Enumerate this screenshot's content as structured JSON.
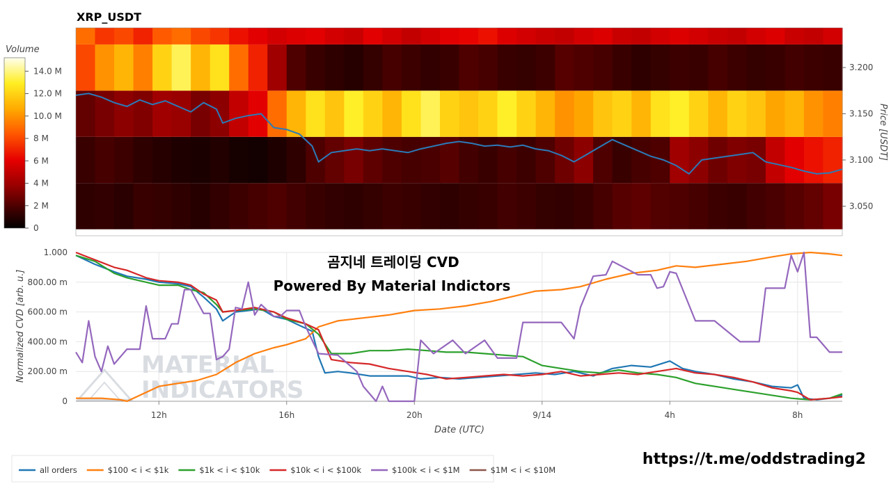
{
  "heatmap_title": "XRP_USDT",
  "colorbar": {
    "title": "Volume",
    "ticks": [
      "0",
      "2 M",
      "4 M",
      "6 M",
      "8 M",
      "10.0 M",
      "12.0 M",
      "14.0 M"
    ],
    "tick_values": [
      0,
      2,
      4,
      6,
      8,
      10,
      12,
      14
    ],
    "max": 15.2
  },
  "overlay": {
    "line1": "곰지네 트레이딩 CVD",
    "line2": "Powered By Material Indictors"
  },
  "watermark": {
    "line1": "MATERIAL",
    "line2": "INDICATORS"
  },
  "telegram_link": "https://t.me/oddstrading2",
  "colors": {
    "all_orders": "#1f77b4",
    "t100_1k": "#ff7f0e",
    "t1k_10k": "#2ca02c",
    "t10k_100k": "#d62728",
    "t100k_1m": "#9467bd",
    "t1m_10m": "#8c564b",
    "price_line": "#2b7bb9"
  },
  "chart_data": [
    {
      "type": "heatmap",
      "title": "XRP_USDT",
      "ylabel": "Price [USDT]",
      "y_ticks": [
        "3.050",
        "3.100",
        "3.150",
        "3.200"
      ],
      "y_tick_values": [
        3.05,
        3.1,
        3.15,
        3.2
      ],
      "ylim": [
        3.018,
        3.243
      ],
      "time_range_hours": [
        9.4,
        33.4
      ],
      "price_bands": [
        {
          "band": [
            3.025,
            3.075
          ],
          "volume": [
            1.2,
            1.3,
            1.1,
            1.5,
            1.4,
            1.2,
            1.0,
            1.3,
            1.6,
            1.8,
            2.0,
            1.7,
            1.5,
            1.3,
            1.2,
            1.4,
            1.6,
            1.5,
            1.3,
            1.2,
            1.4,
            1.5,
            1.7,
            1.6,
            1.4,
            1.3,
            1.5,
            1.8,
            2.2,
            2.4,
            2.1,
            2.0,
            1.8,
            1.6,
            1.5,
            1.7,
            1.9,
            2.2,
            2.5,
            3.0
          ]
        },
        {
          "band": [
            3.075,
            3.125
          ],
          "volume": [
            1.5,
            1.8,
            1.6,
            1.2,
            1.0,
            0.8,
            0.7,
            0.9,
            0.6,
            0.5,
            0.8,
            1.2,
            2.0,
            2.5,
            3.0,
            2.4,
            2.0,
            1.8,
            1.9,
            2.2,
            1.7,
            1.5,
            1.8,
            1.6,
            2.0,
            2.8,
            3.5,
            2.0,
            1.5,
            1.8,
            2.0,
            4.0,
            3.5,
            2.8,
            3.2,
            3.0,
            5.0,
            6.0,
            6.5,
            7.0
          ]
        },
        {
          "band": [
            3.125,
            3.175
          ],
          "volume": [
            2.5,
            3.0,
            3.5,
            3.2,
            4.0,
            3.8,
            3.0,
            3.5,
            5.0,
            6.0,
            9.0,
            11.0,
            12.5,
            11.5,
            13.0,
            12.0,
            11.0,
            12.5,
            13.5,
            12.0,
            11.5,
            12.0,
            13.0,
            12.0,
            11.0,
            10.0,
            10.5,
            11.5,
            12.0,
            11.0,
            12.5,
            13.0,
            12.0,
            11.0,
            12.0,
            11.5,
            10.5,
            11.0,
            10.0,
            9.5
          ]
        },
        {
          "band": [
            3.175,
            3.225
          ],
          "volume": [
            8.0,
            10.0,
            11.0,
            9.5,
            12.0,
            13.5,
            11.0,
            12.5,
            9.0,
            7.0,
            4.0,
            2.0,
            1.5,
            1.2,
            1.0,
            1.4,
            1.8,
            1.6,
            1.3,
            1.5,
            2.0,
            1.8,
            1.5,
            1.4,
            1.6,
            2.2,
            2.0,
            1.8,
            1.5,
            1.2,
            1.4,
            1.6,
            1.5,
            1.8,
            1.6,
            1.4,
            1.5,
            1.7,
            1.6,
            1.5
          ]
        },
        {
          "band": [
            3.225,
            3.275
          ],
          "volume": [
            9.0,
            7.5,
            8.0,
            7.0,
            8.5,
            9.0,
            8.0,
            7.5,
            6.5,
            6.0,
            5.5,
            5.8,
            6.0,
            5.5,
            5.2,
            6.0,
            5.5,
            5.0,
            5.5,
            6.0,
            6.2,
            6.5,
            5.8,
            5.5,
            5.2,
            5.0,
            5.5,
            5.8,
            5.2,
            5.0,
            5.5,
            5.8,
            5.5,
            5.2,
            5.0,
            5.5,
            5.8,
            5.2,
            5.0,
            5.5
          ]
        }
      ],
      "series": [
        {
          "name": "",
          "x": [
            9.4,
            9.8,
            10.2,
            10.6,
            11.0,
            11.4,
            11.8,
            12.2,
            12.6,
            13.0,
            13.4,
            13.8,
            14.0,
            14.4,
            14.8,
            15.2,
            15.6,
            16.0,
            16.4,
            16.8,
            17.0,
            17.4,
            17.8,
            18.2,
            18.6,
            19.0,
            19.4,
            19.8,
            20.2,
            20.6,
            21.0,
            21.4,
            21.8,
            22.2,
            22.6,
            23.0,
            23.4,
            23.8,
            24.2,
            24.6,
            25.0,
            25.4,
            25.8,
            26.2,
            26.6,
            27.0,
            27.4,
            27.8,
            28.2,
            28.6,
            29.0,
            29.4,
            29.8,
            30.2,
            30.6,
            31.0,
            31.4,
            31.8,
            32.2,
            32.6,
            33.0,
            33.4
          ],
          "y": [
            3.17,
            3.172,
            3.168,
            3.162,
            3.158,
            3.165,
            3.16,
            3.164,
            3.158,
            3.152,
            3.162,
            3.155,
            3.14,
            3.145,
            3.148,
            3.15,
            3.135,
            3.133,
            3.128,
            3.115,
            3.098,
            3.108,
            3.11,
            3.112,
            3.11,
            3.112,
            3.11,
            3.108,
            3.112,
            3.115,
            3.118,
            3.12,
            3.118,
            3.115,
            3.116,
            3.114,
            3.116,
            3.112,
            3.11,
            3.105,
            3.098,
            3.106,
            3.114,
            3.122,
            3.116,
            3.11,
            3.104,
            3.1,
            3.094,
            3.085,
            3.1,
            3.102,
            3.104,
            3.106,
            3.108,
            3.098,
            3.095,
            3.092,
            3.088,
            3.085,
            3.086,
            3.09
          ]
        }
      ]
    },
    {
      "type": "line",
      "xlabel": "Date (UTC)",
      "ylabel": "Normalized CVD [arb. u.]",
      "x_tick_labels": [
        "12h",
        "16h",
        "20h",
        "9/14",
        "4h",
        "8h"
      ],
      "x_tick_values": [
        12,
        16,
        20,
        24,
        28,
        32
      ],
      "xlim": [
        9.4,
        33.4
      ],
      "y_tick_labels": [
        "0",
        "200.00 m",
        "400.00 m",
        "600.00 m",
        "800.00 m",
        "1.000"
      ],
      "y_tick_values": [
        0,
        0.2,
        0.4,
        0.6,
        0.8,
        1.0
      ],
      "ylim": [
        0,
        1.0
      ],
      "grid": true,
      "legend_position": "bottom",
      "series": [
        {
          "name": "all orders",
          "x": [
            9.4,
            10.0,
            10.6,
            11.0,
            11.6,
            12.0,
            12.6,
            13.0,
            13.4,
            13.8,
            14.0,
            14.4,
            14.8,
            15.2,
            15.6,
            16.0,
            16.4,
            16.8,
            17.0,
            17.2,
            17.6,
            18.0,
            18.6,
            19.2,
            19.8,
            20.2,
            20.8,
            21.4,
            22.0,
            22.6,
            23.2,
            23.8,
            24.4,
            25.0,
            25.6,
            26.2,
            26.8,
            27.4,
            28.0,
            28.4,
            28.8,
            29.4,
            30.0,
            30.6,
            31.2,
            31.8,
            32.0,
            32.2,
            32.6,
            33.0,
            33.4
          ],
          "y": [
            0.98,
            0.92,
            0.87,
            0.84,
            0.82,
            0.8,
            0.79,
            0.77,
            0.7,
            0.62,
            0.54,
            0.6,
            0.61,
            0.62,
            0.57,
            0.55,
            0.51,
            0.47,
            0.3,
            0.19,
            0.2,
            0.19,
            0.17,
            0.17,
            0.17,
            0.15,
            0.16,
            0.15,
            0.16,
            0.17,
            0.18,
            0.19,
            0.18,
            0.2,
            0.17,
            0.22,
            0.24,
            0.23,
            0.27,
            0.22,
            0.2,
            0.18,
            0.15,
            0.13,
            0.1,
            0.09,
            0.11,
            0.02,
            0.01,
            0.02,
            0.04
          ]
        },
        {
          "name": "$100 < i < $1k",
          "x": [
            9.4,
            10.2,
            10.8,
            11.0,
            11.6,
            12.0,
            12.6,
            13.2,
            13.8,
            14.4,
            15.0,
            15.6,
            16.0,
            16.6,
            17.0,
            17.6,
            18.4,
            19.2,
            20.0,
            20.8,
            21.6,
            22.4,
            23.2,
            23.8,
            24.6,
            25.2,
            26.0,
            26.8,
            27.6,
            28.2,
            28.8,
            29.6,
            30.4,
            31.2,
            31.8,
            32.4,
            33.0,
            33.4
          ],
          "y": [
            0.02,
            0.02,
            0.01,
            0.0,
            0.06,
            0.1,
            0.12,
            0.14,
            0.18,
            0.26,
            0.32,
            0.36,
            0.38,
            0.42,
            0.5,
            0.54,
            0.56,
            0.58,
            0.61,
            0.62,
            0.64,
            0.67,
            0.71,
            0.74,
            0.75,
            0.77,
            0.82,
            0.86,
            0.88,
            0.91,
            0.9,
            0.92,
            0.94,
            0.97,
            0.99,
            1.0,
            0.99,
            0.98
          ]
        },
        {
          "name": "$1k < i < $10k",
          "x": [
            9.4,
            10.0,
            10.6,
            11.0,
            11.6,
            12.0,
            12.6,
            13.0,
            13.4,
            13.8,
            14.0,
            14.4,
            15.0,
            15.6,
            16.0,
            16.6,
            17.0,
            17.4,
            18.0,
            18.6,
            19.2,
            19.8,
            20.4,
            21.0,
            21.6,
            22.2,
            22.8,
            23.4,
            24.0,
            24.6,
            25.2,
            25.8,
            26.4,
            27.0,
            27.6,
            28.2,
            28.8,
            29.4,
            30.0,
            30.6,
            31.2,
            31.8,
            32.4,
            33.0,
            33.4
          ],
          "y": [
            0.98,
            0.94,
            0.86,
            0.83,
            0.8,
            0.78,
            0.78,
            0.75,
            0.73,
            0.65,
            0.6,
            0.61,
            0.62,
            0.6,
            0.55,
            0.52,
            0.45,
            0.32,
            0.32,
            0.34,
            0.34,
            0.35,
            0.34,
            0.33,
            0.33,
            0.32,
            0.31,
            0.3,
            0.24,
            0.22,
            0.2,
            0.19,
            0.21,
            0.19,
            0.18,
            0.16,
            0.12,
            0.1,
            0.08,
            0.06,
            0.04,
            0.02,
            0.01,
            0.02,
            0.05
          ]
        },
        {
          "name": "$10k < i < $100k",
          "x": [
            9.4,
            10.0,
            10.6,
            11.0,
            11.6,
            12.0,
            12.6,
            13.0,
            13.4,
            13.8,
            14.0,
            14.4,
            15.0,
            15.6,
            16.0,
            16.6,
            17.0,
            17.4,
            18.0,
            18.6,
            19.2,
            19.8,
            20.4,
            21.0,
            21.6,
            22.2,
            22.8,
            23.4,
            24.0,
            24.6,
            25.2,
            25.8,
            26.4,
            27.0,
            27.6,
            28.2,
            28.8,
            29.4,
            30.0,
            30.6,
            31.2,
            31.8,
            32.0,
            32.4,
            33.0,
            33.4
          ],
          "y": [
            1.0,
            0.95,
            0.9,
            0.88,
            0.83,
            0.81,
            0.8,
            0.78,
            0.72,
            0.68,
            0.6,
            0.61,
            0.63,
            0.6,
            0.56,
            0.52,
            0.48,
            0.28,
            0.26,
            0.25,
            0.22,
            0.2,
            0.18,
            0.15,
            0.16,
            0.17,
            0.18,
            0.17,
            0.18,
            0.2,
            0.17,
            0.18,
            0.19,
            0.18,
            0.2,
            0.22,
            0.19,
            0.18,
            0.16,
            0.13,
            0.09,
            0.07,
            0.06,
            0.01,
            0.02,
            0.03
          ]
        },
        {
          "name": "$100k < i < $1M",
          "x": [
            9.4,
            9.6,
            9.8,
            10.0,
            10.2,
            10.4,
            10.6,
            11.0,
            11.4,
            11.6,
            11.8,
            12.2,
            12.4,
            12.6,
            12.8,
            13.0,
            13.4,
            13.6,
            13.8,
            14.0,
            14.2,
            14.4,
            14.6,
            14.8,
            15.0,
            15.2,
            15.4,
            15.6,
            15.8,
            16.0,
            16.4,
            16.6,
            17.0,
            17.6,
            18.2,
            18.4,
            18.8,
            19.0,
            19.2,
            19.6,
            20.0,
            20.2,
            20.6,
            21.2,
            21.6,
            22.2,
            22.6,
            23.2,
            23.4,
            24.6,
            25.0,
            25.2,
            25.6,
            26.0,
            26.2,
            27.0,
            27.4,
            27.6,
            27.8,
            28.0,
            28.2,
            28.8,
            29.4,
            30.2,
            30.8,
            31.0,
            31.6,
            31.8,
            32.0,
            32.2,
            32.4,
            32.6,
            33.0,
            33.4
          ],
          "y": [
            0.33,
            0.26,
            0.54,
            0.3,
            0.2,
            0.37,
            0.25,
            0.35,
            0.35,
            0.64,
            0.42,
            0.42,
            0.52,
            0.52,
            0.75,
            0.75,
            0.59,
            0.59,
            0.28,
            0.3,
            0.35,
            0.63,
            0.62,
            0.8,
            0.58,
            0.65,
            0.61,
            0.57,
            0.57,
            0.61,
            0.61,
            0.5,
            0.32,
            0.31,
            0.2,
            0.1,
            0.0,
            0.1,
            0.0,
            0.0,
            0.0,
            0.41,
            0.32,
            0.41,
            0.32,
            0.41,
            0.29,
            0.29,
            0.53,
            0.53,
            0.42,
            0.63,
            0.84,
            0.85,
            0.94,
            0.85,
            0.85,
            0.76,
            0.77,
            0.87,
            0.86,
            0.54,
            0.54,
            0.4,
            0.4,
            0.76,
            0.76,
            0.98,
            0.87,
            1.0,
            0.43,
            0.43,
            0.33,
            0.33
          ]
        },
        {
          "name": "$1M < i < $10M",
          "x": [],
          "y": []
        }
      ]
    }
  ]
}
